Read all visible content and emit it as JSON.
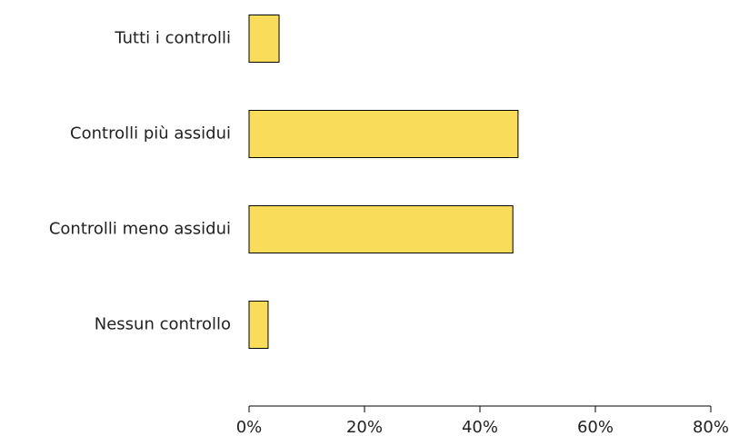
{
  "chart_data": {
    "type": "bar",
    "orientation": "horizontal",
    "categories": [
      "Tutti i controlli",
      "Controlli più assidui",
      "Controlli meno assidui",
      "Nessun controllo"
    ],
    "values": [
      5.2,
      46.6,
      45.7,
      3.3
    ],
    "color": "#f9dd5a",
    "xlim": [
      0,
      80
    ],
    "xticks": [
      {
        "value": 0,
        "label": "0%"
      },
      {
        "value": 20,
        "label": "20%"
      },
      {
        "value": 40,
        "label": "40%"
      },
      {
        "value": 60,
        "label": "60%"
      },
      {
        "value": 80,
        "label": "80%"
      }
    ],
    "grid": false
  }
}
